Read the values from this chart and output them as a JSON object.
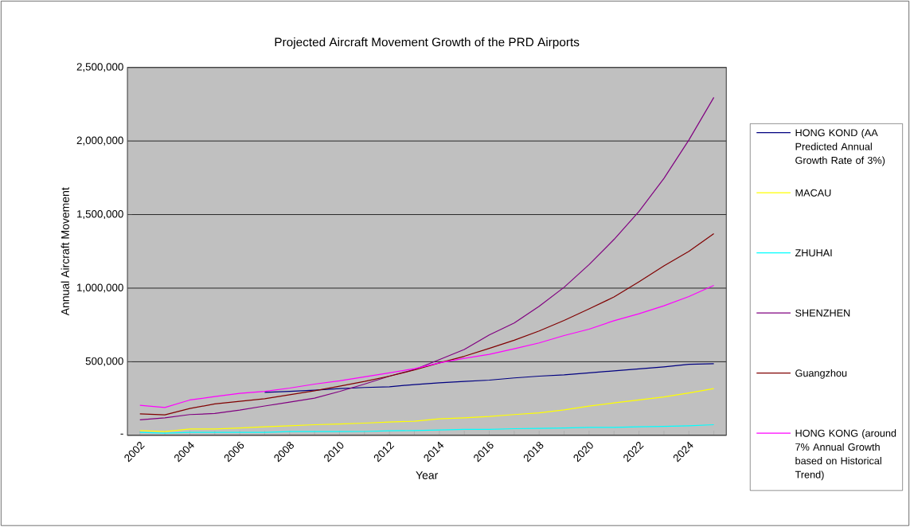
{
  "chart_data": {
    "type": "line",
    "title": "Projected Aircraft Movement Growth of the PRD Airports",
    "xlabel": "Year",
    "ylabel": "Annual Aircraft Movement",
    "categories": [
      "2002",
      null,
      "2004",
      null,
      "2006",
      null,
      "2008",
      null,
      "2010",
      null,
      "2012",
      null,
      "2014",
      null,
      "2016",
      null,
      "2018",
      null,
      "2020",
      null,
      "2022",
      null,
      "2024",
      null
    ],
    "series": [
      {
        "name": "HONG KOND (AA Predicted Annual Growth Rate of 3%)",
        "color": "#000080",
        "values": [
          null,
          null,
          null,
          null,
          null,
          292000,
          299000,
          307000,
          318000,
          325000,
          330000,
          345000,
          357000,
          366000,
          375000,
          390000,
          402000,
          411000,
          424000,
          438000,
          451000,
          465000,
          482000,
          487000
        ]
      },
      {
        "name": "MACAU",
        "color": "#ffff00",
        "values": [
          32000,
          25000,
          43000,
          43000,
          50000,
          58000,
          65000,
          72000,
          77000,
          83000,
          90000,
          96000,
          112000,
          119000,
          128000,
          141000,
          153000,
          173000,
          199000,
          220000,
          240000,
          261000,
          288000,
          318000
        ]
      },
      {
        "name": "ZHUHAI",
        "color": "#00ffff",
        "values": [
          20000,
          15000,
          20000,
          20000,
          20000,
          20000,
          25000,
          25000,
          25000,
          26000,
          31000,
          32000,
          36000,
          40000,
          40000,
          45000,
          47000,
          50000,
          54000,
          54000,
          58000,
          61000,
          65000,
          72000
        ]
      },
      {
        "name": "SHENZHEN",
        "color": "#800080",
        "values": [
          105000,
          119000,
          141000,
          148000,
          171000,
          199000,
          226000,
          253000,
          298000,
          348000,
          402000,
          447000,
          514000,
          583000,
          682000,
          763000,
          877000,
          1006000,
          1160000,
          1331000,
          1521000,
          1746000,
          2007000,
          2296000
        ]
      },
      {
        "name": "Guangzhou",
        "color": "#800000",
        "values": [
          146000,
          139000,
          182000,
          213000,
          231000,
          249000,
          276000,
          303000,
          334000,
          366000,
          402000,
          444000,
          492000,
          537000,
          591000,
          646000,
          709000,
          781000,
          859000,
          940000,
          1043000,
          1151000,
          1250000,
          1371000
        ]
      },
      {
        "name": "HONG KONG (around 7% Annual Growth based on Historical Trend)",
        "color": "#ff00ff",
        "values": [
          204000,
          189000,
          240000,
          263000,
          285000,
          299000,
          321000,
          348000,
          370000,
          397000,
          424000,
          453000,
          492000,
          523000,
          550000,
          588000,
          628000,
          678000,
          721000,
          779000,
          826000,
          880000,
          943000,
          1019000
        ]
      }
    ],
    "ylim": [
      0,
      2500000
    ],
    "yticks": [
      {
        "value": 0,
        "label": "-"
      },
      {
        "value": 500000,
        "label": "500,000"
      },
      {
        "value": 1000000,
        "label": "1,000,000"
      },
      {
        "value": 1500000,
        "label": "1,500,000"
      },
      {
        "value": 2000000,
        "label": "2,000,000"
      },
      {
        "value": 2500000,
        "label": "2,500,000"
      }
    ],
    "grid": "y",
    "legend": "right",
    "line_style": "solid"
  }
}
